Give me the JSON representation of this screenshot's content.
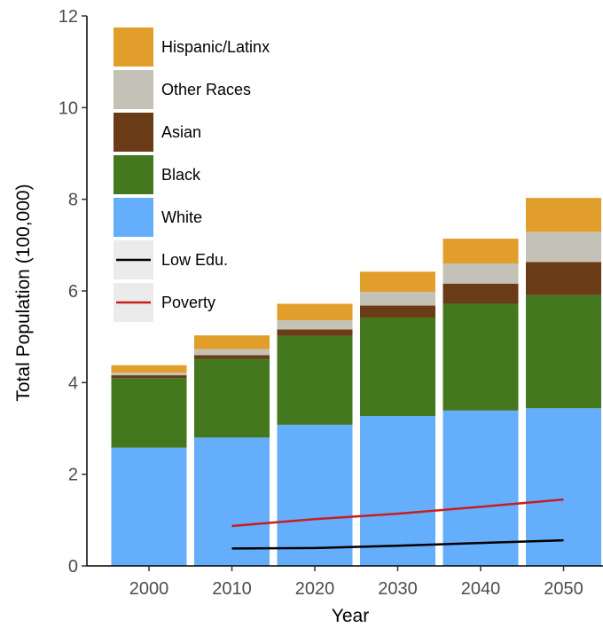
{
  "chart_data": {
    "type": "bar",
    "stacked": true,
    "xlabel": "Year",
    "ylabel": "Total Population (100,000)",
    "ylim": [
      0,
      12
    ],
    "yticks": [
      "0",
      "2",
      "4",
      "6",
      "8",
      "10",
      "12"
    ],
    "categories": [
      "2000",
      "2010",
      "2020",
      "2030",
      "2040",
      "2050"
    ],
    "grid": false,
    "legend_position": "top-left",
    "series": [
      {
        "name": "White",
        "color": "#64aefc",
        "values": [
          2.58,
          2.8,
          3.08,
          3.27,
          3.39,
          3.44
        ]
      },
      {
        "name": "Black",
        "color": "#43781e",
        "values": [
          1.52,
          1.72,
          1.94,
          2.15,
          2.33,
          2.47
        ]
      },
      {
        "name": "Asian",
        "color": "#6a3b17",
        "values": [
          0.06,
          0.08,
          0.14,
          0.26,
          0.44,
          0.72
        ]
      },
      {
        "name": "Other Races",
        "color": "#c4c1b6",
        "values": [
          0.06,
          0.13,
          0.2,
          0.3,
          0.44,
          0.66
        ]
      },
      {
        "name": "Hispanic/Latinx",
        "color": "#e19e2a",
        "values": [
          0.16,
          0.3,
          0.36,
          0.44,
          0.54,
          0.74
        ]
      }
    ],
    "lines": [
      {
        "name": "Low Edu.",
        "color": "#000000",
        "x": [
          "2010",
          "2020",
          "2030",
          "2040",
          "2050"
        ],
        "values": [
          0.38,
          0.39,
          0.44,
          0.5,
          0.56
        ]
      },
      {
        "name": "Poverty",
        "color": "#c81e1e",
        "x": [
          "2010",
          "2020",
          "2030",
          "2040",
          "2050"
        ],
        "values": [
          0.87,
          1.02,
          1.14,
          1.29,
          1.45
        ]
      }
    ],
    "legend": [
      {
        "label": "Hispanic/Latinx",
        "kind": "fill",
        "color": "#e19e2a"
      },
      {
        "label": "Other Races",
        "kind": "fill",
        "color": "#c4c1b6"
      },
      {
        "label": "Asian",
        "kind": "fill",
        "color": "#6a3b17"
      },
      {
        "label": "Black",
        "kind": "fill",
        "color": "#43781e"
      },
      {
        "label": "White",
        "kind": "fill",
        "color": "#64aefc"
      },
      {
        "label": "Low Edu.",
        "kind": "line",
        "color": "#000000"
      },
      {
        "label": "Poverty",
        "kind": "line",
        "color": "#c81e1e"
      }
    ]
  }
}
